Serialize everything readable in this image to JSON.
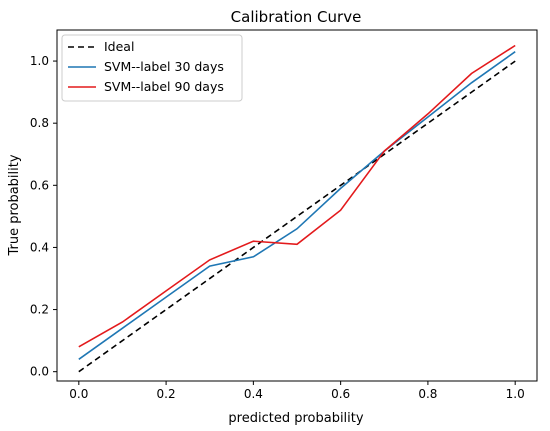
{
  "chart_data": {
    "type": "line",
    "title": "Calibration Curve",
    "xlabel": "predicted probability",
    "ylabel": "True probability",
    "xlim": [
      -0.05,
      1.05
    ],
    "ylim": [
      -0.03,
      1.1
    ],
    "xticks": [
      0.0,
      0.2,
      0.4,
      0.6,
      0.8,
      1.0
    ],
    "yticks": [
      0.0,
      0.2,
      0.4,
      0.6,
      0.8,
      1.0
    ],
    "xtick_labels": [
      "0.0",
      "0.2",
      "0.4",
      "0.6",
      "0.8",
      "1.0"
    ],
    "ytick_labels": [
      "0.0",
      "0.2",
      "0.4",
      "0.6",
      "0.8",
      "1.0"
    ],
    "grid": false,
    "legend_position": "top-left",
    "series": [
      {
        "name": "Ideal",
        "color": "#000000",
        "dash": true,
        "x": [
          0.0,
          1.0
        ],
        "y": [
          0.0,
          1.0
        ]
      },
      {
        "name": "SVM--label 30 days",
        "color": "#1f77b4",
        "dash": false,
        "x": [
          0.0,
          0.1,
          0.2,
          0.3,
          0.4,
          0.5,
          0.6,
          0.7,
          0.8,
          0.9,
          1.0
        ],
        "y": [
          0.04,
          0.14,
          0.24,
          0.34,
          0.37,
          0.46,
          0.59,
          0.71,
          0.82,
          0.93,
          1.03
        ]
      },
      {
        "name": "SVM--label 90 days",
        "color": "#e31a1c",
        "dash": false,
        "x": [
          0.0,
          0.1,
          0.2,
          0.3,
          0.4,
          0.5,
          0.6,
          0.7,
          0.8,
          0.9,
          1.0
        ],
        "y": [
          0.08,
          0.16,
          0.26,
          0.36,
          0.42,
          0.41,
          0.52,
          0.71,
          0.83,
          0.96,
          1.05
        ]
      }
    ]
  }
}
